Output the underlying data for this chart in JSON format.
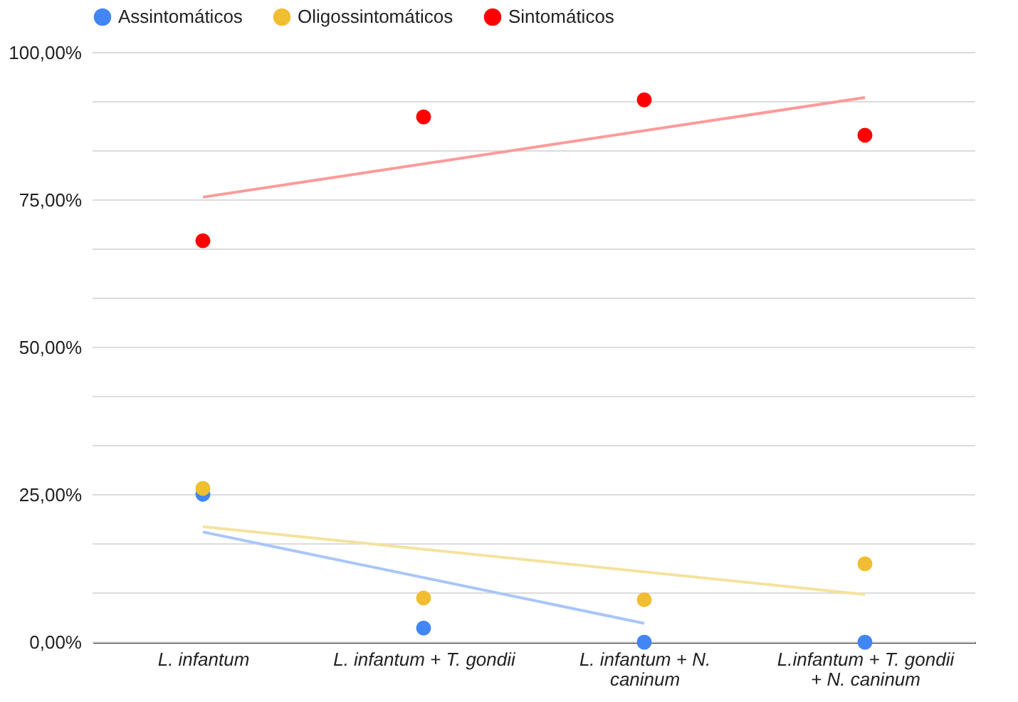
{
  "chart_data": {
    "type": "scatter",
    "categories": [
      "L. infantum",
      "L. infantum + T. gondii",
      "L. infantum + N. caninum",
      "L.infantum + T. gondii + N. caninum"
    ],
    "ylim": [
      0,
      100
    ],
    "yticks": [
      {
        "value": 0,
        "label": "0,00%"
      },
      {
        "value": 8.33,
        "label": null
      },
      {
        "value": 16.67,
        "label": null
      },
      {
        "value": 25,
        "label": "25,00%"
      },
      {
        "value": 33.33,
        "label": null
      },
      {
        "value": 41.67,
        "label": null
      },
      {
        "value": 50,
        "label": "50,00%"
      },
      {
        "value": 58.33,
        "label": null
      },
      {
        "value": 66.67,
        "label": null
      },
      {
        "value": 75,
        "label": "75,00%"
      },
      {
        "value": 83.33,
        "label": null
      },
      {
        "value": 91.67,
        "label": null
      },
      {
        "value": 100,
        "label": "100,00%"
      }
    ],
    "series": [
      {
        "name": "Assintomáticos",
        "color": "#4285f4",
        "values": [
          25.1,
          2.4,
          0,
          0
        ]
      },
      {
        "name": "Oligossintomáticos",
        "color": "#f1be32",
        "values": [
          26.1,
          7.5,
          7.2,
          13.3
        ]
      },
      {
        "name": "Sintomáticos",
        "color": "#ff0000",
        "values": [
          68.1,
          89.1,
          92.0,
          86.0
        ]
      },
      {
        "type": "line",
        "marker": "none",
        "color": "#a9c6fa",
        "x": [
          "L. infantum",
          "L. infantum + N. caninum"
        ],
        "values": [
          18.7,
          3.2
        ]
      },
      {
        "type": "line",
        "marker": "none",
        "color": "#f4e29e",
        "x": [
          "L. infantum",
          "L.infantum + T. gondii + N. caninum"
        ],
        "values": [
          19.6,
          8.1
        ]
      },
      {
        "type": "line",
        "marker": "none",
        "color": "#ff9a9a",
        "x": [
          "L. infantum",
          "L.infantum + T. gondii + N. caninum"
        ],
        "values": [
          75.5,
          92.4
        ]
      }
    ],
    "grid": "y",
    "legend": "top",
    "marker": "circle"
  }
}
